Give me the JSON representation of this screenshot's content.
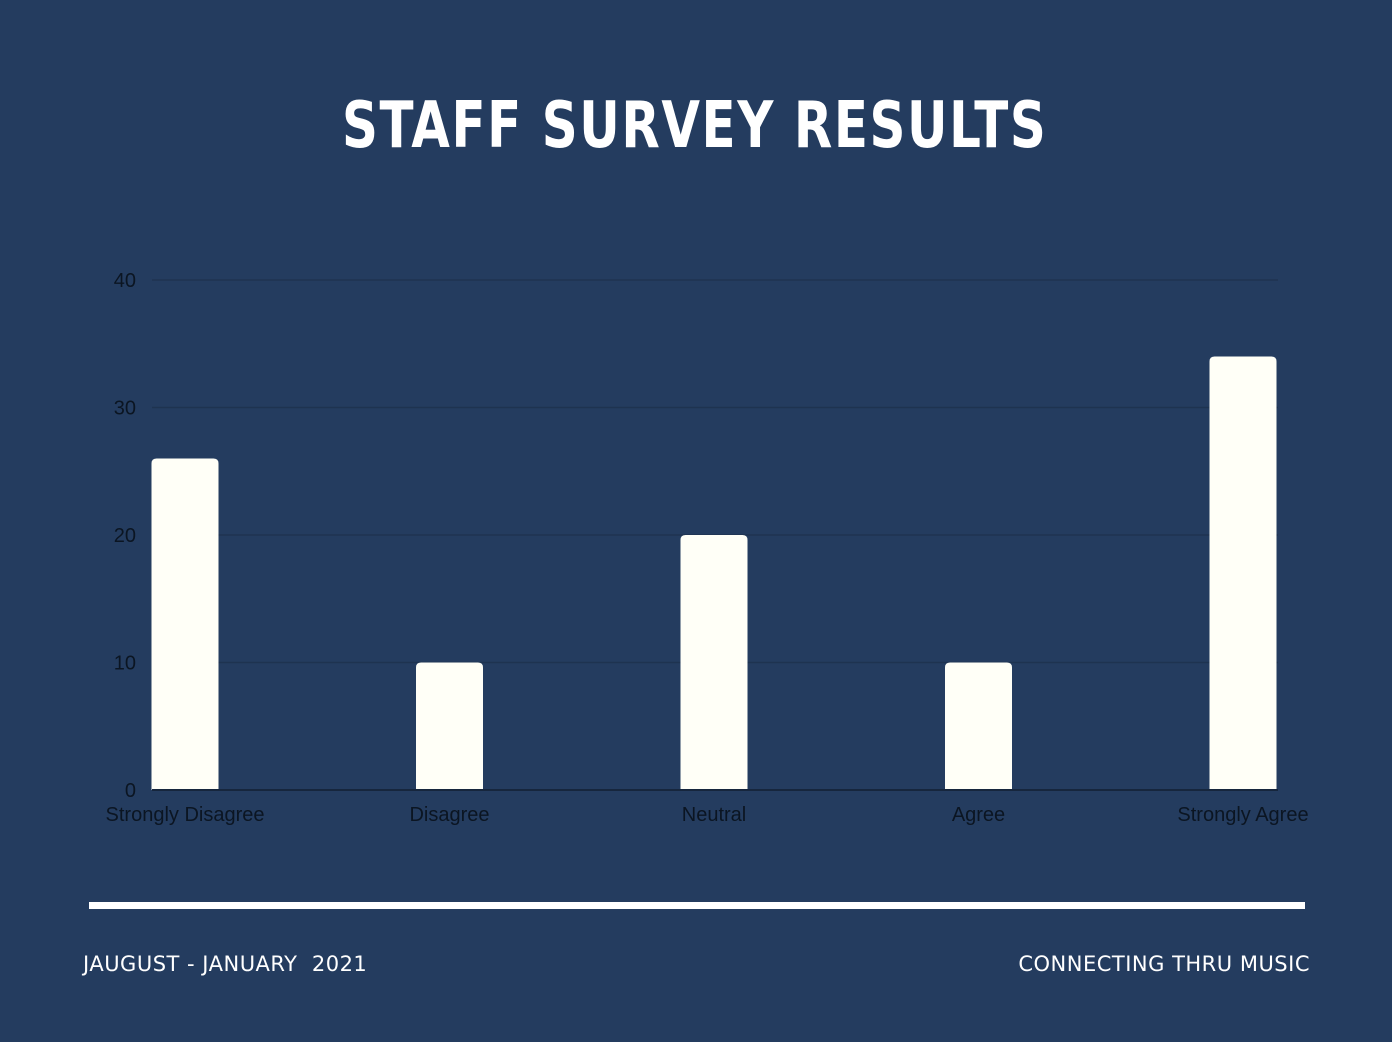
{
  "title": "STAFF SURVEY RESULTS",
  "footer": {
    "left": "JAUGUST - JANUARY  2021",
    "right": "CONNECTING THRU MUSIC"
  },
  "colors": {
    "background": "#243c5f",
    "bar": "#fffff7",
    "text": "#ffffff",
    "axis_text": "#0b1522",
    "grid": "#1e3350"
  },
  "chart_data": {
    "type": "bar",
    "categories": [
      "Strongly Disagree",
      "Disagree",
      "Neutral",
      "Agree",
      "Strongly Agree"
    ],
    "values": [
      26,
      10,
      20,
      10,
      34
    ],
    "ylim": [
      0,
      40
    ],
    "yticks": [
      0,
      10,
      20,
      30,
      40
    ],
    "grid": true,
    "legend": "none"
  }
}
